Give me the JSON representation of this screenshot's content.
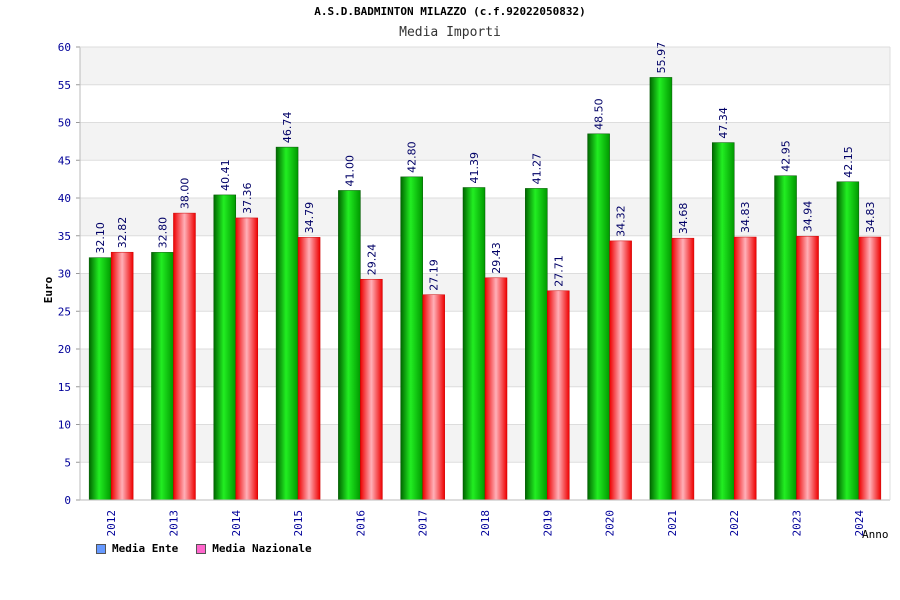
{
  "header": {
    "title": "A.S.D.BADMINTON MILAZZO (c.f.92022050832)",
    "subtitle": "Media Importi"
  },
  "legend": [
    {
      "label": "Media Ente",
      "color": "#6699ff"
    },
    {
      "label": "Media Nazionale",
      "color": "#ff66cc"
    }
  ],
  "colors": {
    "ente_bar": "#00cc00",
    "nazionale_bar": "#ff1a1a",
    "axis_text": "#000099"
  },
  "chart_data": {
    "type": "bar",
    "title": "Media Importi",
    "xlabel": "Anno",
    "ylabel": "Euro",
    "ylim": [
      0,
      60
    ],
    "yticks": [
      0,
      5,
      10,
      15,
      20,
      25,
      30,
      35,
      40,
      45,
      50,
      55,
      60
    ],
    "grid": true,
    "legend_position": "bottom-left",
    "categories": [
      "2012",
      "2013",
      "2014",
      "2015",
      "2016",
      "2017",
      "2018",
      "2019",
      "2020",
      "2021",
      "2022",
      "2023",
      "2024"
    ],
    "series": [
      {
        "name": "Media Ente",
        "values": [
          32.1,
          32.8,
          40.41,
          46.74,
          41.0,
          42.8,
          41.39,
          41.27,
          48.5,
          55.97,
          47.34,
          42.95,
          42.15
        ],
        "labels": [
          "32.10",
          "32.80",
          "40.41",
          "46.74",
          "41.00",
          "42.80",
          "41.39",
          "41.27",
          "48.50",
          "55.97",
          "47.34",
          "42.95",
          "42.15"
        ]
      },
      {
        "name": "Media Nazionale",
        "values": [
          32.82,
          38.0,
          37.36,
          34.79,
          29.24,
          27.19,
          29.43,
          27.71,
          34.32,
          34.68,
          34.83,
          34.94,
          34.83
        ],
        "labels": [
          "32.82",
          "38.00",
          "37.36",
          "34.79",
          "29.24",
          "27.19",
          "29.43",
          "27.71",
          "34.32",
          "34.68",
          "34.83",
          "34.94",
          "34.83"
        ]
      }
    ]
  }
}
